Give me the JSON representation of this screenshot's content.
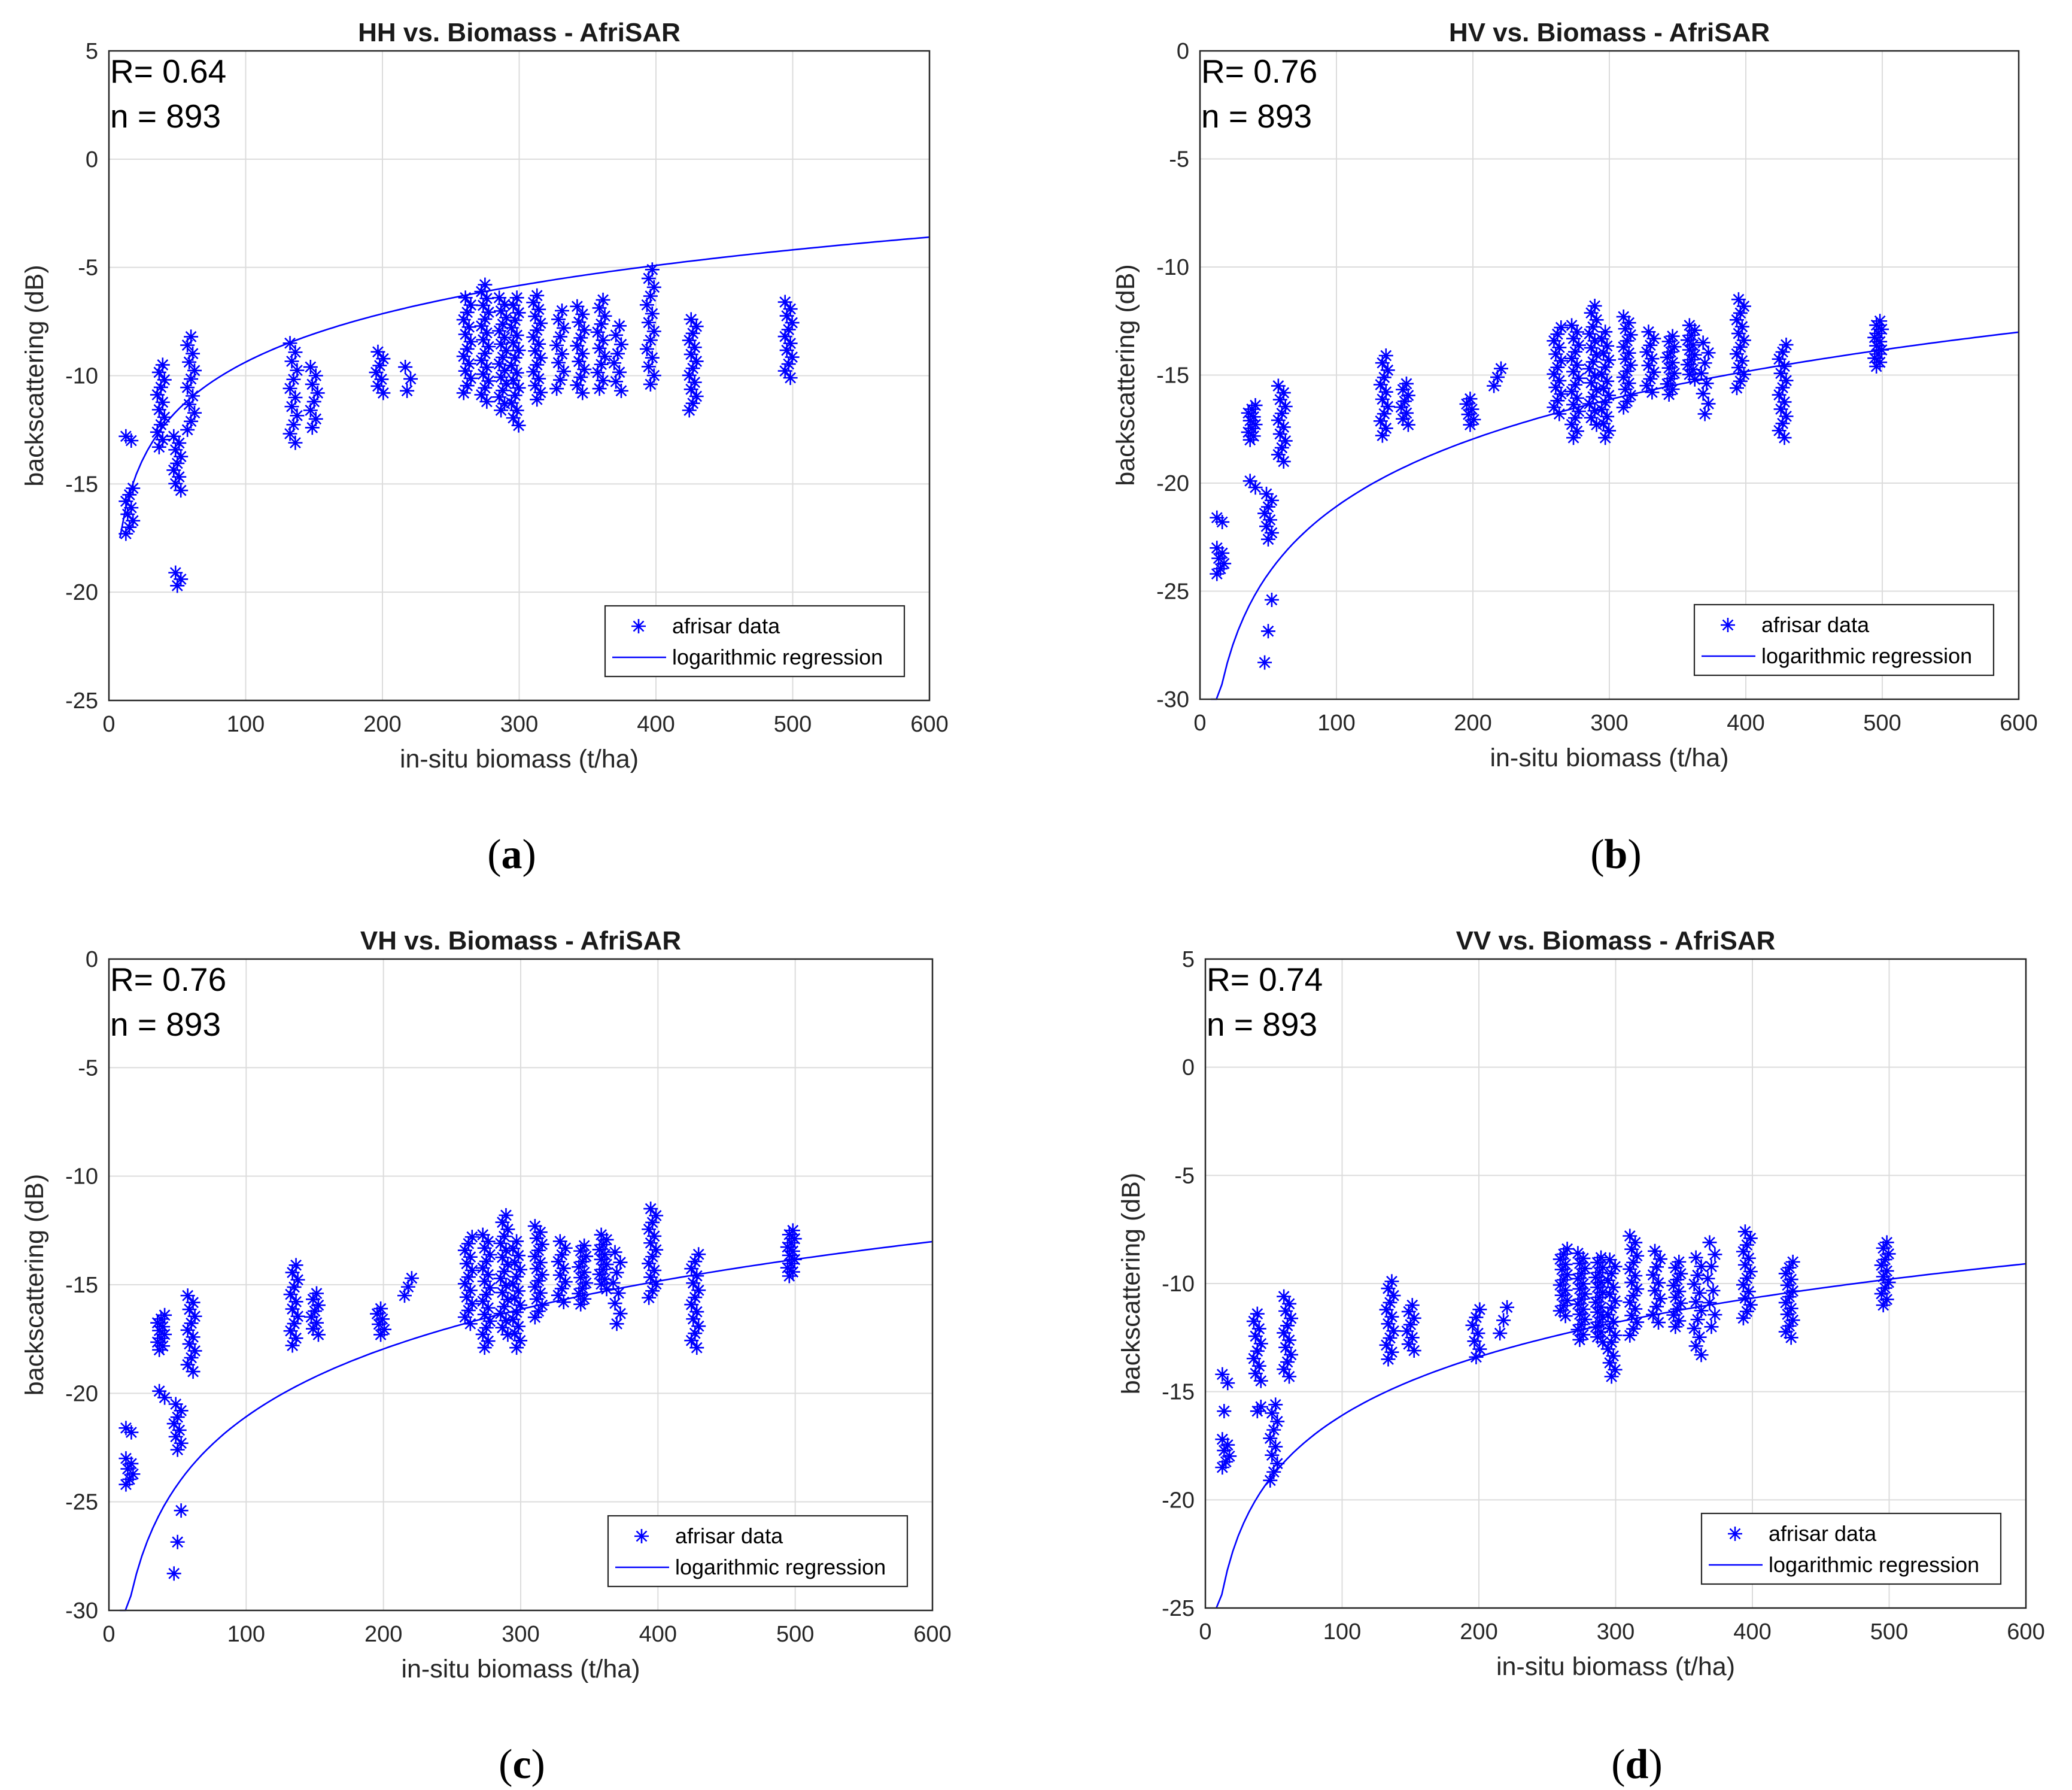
{
  "chart_data": [
    {
      "type": "scatter",
      "panel": "(a)",
      "title": "HH vs. Biomass - AfriSAR",
      "xlabel": "in-situ biomass (t/ha)",
      "ylabel": "backscattering (dB)",
      "xlim": [
        0,
        600
      ],
      "ylim": [
        -25,
        5
      ],
      "xticks": [
        0,
        100,
        200,
        300,
        400,
        500,
        600
      ],
      "yticks": [
        5,
        0,
        -5,
        -10,
        -15,
        -20,
        -25
      ],
      "annotations": [
        "R= 0.64",
        "n = 893"
      ],
      "legend": {
        "position": "bottom-right",
        "entries": [
          "afrisar data",
          "logarithmic regression"
        ]
      },
      "regression": {
        "a": 3.22,
        "b": -24.2
      },
      "clusters": [
        {
          "x": 15,
          "ymin": -17.3,
          "ymax": -15.2,
          "n": 8
        },
        {
          "x": 15,
          "ymin": -13.0,
          "ymax": -12.8,
          "n": 2
        },
        {
          "x": 38,
          "ymin": -13.3,
          "ymax": -9.5,
          "n": 12
        },
        {
          "x": 50,
          "ymin": -15.3,
          "ymax": -12.8,
          "n": 9
        },
        {
          "x": 50,
          "ymin": -19.7,
          "ymax": -19.1,
          "n": 3
        },
        {
          "x": 60,
          "ymin": -12.5,
          "ymax": -8.2,
          "n": 12
        },
        {
          "x": 135,
          "ymin": -13.1,
          "ymax": -8.5,
          "n": 12
        },
        {
          "x": 150,
          "ymin": -12.4,
          "ymax": -9.6,
          "n": 8
        },
        {
          "x": 198,
          "ymin": -10.8,
          "ymax": -8.9,
          "n": 7
        },
        {
          "x": 218,
          "ymin": -10.7,
          "ymax": -9.6,
          "n": 3
        },
        {
          "x": 262,
          "ymin": -10.8,
          "ymax": -6.4,
          "n": 14
        },
        {
          "x": 275,
          "ymin": -11.2,
          "ymax": -5.8,
          "n": 18
        },
        {
          "x": 288,
          "ymin": -11.6,
          "ymax": -6.4,
          "n": 18
        },
        {
          "x": 297,
          "ymin": -12.3,
          "ymax": -6.4,
          "n": 18
        },
        {
          "x": 313,
          "ymin": -11.1,
          "ymax": -6.3,
          "n": 16
        },
        {
          "x": 330,
          "ymin": -10.6,
          "ymax": -7.0,
          "n": 10
        },
        {
          "x": 345,
          "ymin": -10.8,
          "ymax": -6.8,
          "n": 12
        },
        {
          "x": 360,
          "ymin": -10.6,
          "ymax": -6.5,
          "n": 12
        },
        {
          "x": 372,
          "ymin": -10.7,
          "ymax": -7.7,
          "n": 8
        },
        {
          "x": 396,
          "ymin": -10.4,
          "ymax": -5.1,
          "n": 14
        },
        {
          "x": 427,
          "ymin": -11.6,
          "ymax": -7.4,
          "n": 14
        },
        {
          "x": 497,
          "ymin": -10.1,
          "ymax": -6.6,
          "n": 12
        }
      ]
    },
    {
      "type": "scatter",
      "panel": "(b)",
      "title": "HV vs. Biomass - AfriSAR",
      "xlabel": "in-situ biomass (t/ha)",
      "ylabel": "backscattering (dB)",
      "xlim": [
        0,
        600
      ],
      "ylim": [
        -30,
        0
      ],
      "xticks": [
        0,
        100,
        200,
        300,
        400,
        500,
        600
      ],
      "yticks": [
        0,
        -5,
        -10,
        -15,
        -20,
        -25,
        -30
      ],
      "annotations": [
        "R= 0.76",
        "n = 893"
      ],
      "legend": {
        "position": "bottom-right",
        "entries": [
          "afrisar data",
          "logarithmic regression"
        ]
      },
      "regression": {
        "a": 4.5,
        "b": -41.8
      },
      "clusters": [
        {
          "x": 15,
          "ymin": -24.2,
          "ymax": -23.0,
          "n": 6
        },
        {
          "x": 15,
          "ymin": -21.8,
          "ymax": -21.6,
          "n": 2
        },
        {
          "x": 38,
          "ymin": -18.0,
          "ymax": -16.4,
          "n": 10
        },
        {
          "x": 38,
          "ymin": -20.2,
          "ymax": -19.9,
          "n": 2
        },
        {
          "x": 50,
          "ymin": -22.6,
          "ymax": -20.5,
          "n": 8
        },
        {
          "x": 50,
          "ymin": -28.3,
          "ymax": -25.4,
          "n": 3
        },
        {
          "x": 60,
          "ymin": -19.0,
          "ymax": -15.5,
          "n": 12
        },
        {
          "x": 135,
          "ymin": -17.8,
          "ymax": -14.1,
          "n": 12
        },
        {
          "x": 150,
          "ymin": -17.3,
          "ymax": -15.4,
          "n": 8
        },
        {
          "x": 198,
          "ymin": -17.3,
          "ymax": -16.1,
          "n": 6
        },
        {
          "x": 218,
          "ymin": -15.5,
          "ymax": -14.7,
          "n": 3
        },
        {
          "x": 262,
          "ymin": -16.8,
          "ymax": -12.8,
          "n": 14
        },
        {
          "x": 275,
          "ymin": -17.9,
          "ymax": -12.7,
          "n": 18
        },
        {
          "x": 288,
          "ymin": -17.3,
          "ymax": -11.8,
          "n": 18
        },
        {
          "x": 297,
          "ymin": -17.9,
          "ymax": -13.0,
          "n": 16
        },
        {
          "x": 313,
          "ymin": -16.5,
          "ymax": -12.3,
          "n": 16
        },
        {
          "x": 330,
          "ymin": -15.8,
          "ymax": -13.0,
          "n": 10
        },
        {
          "x": 345,
          "ymin": -15.9,
          "ymax": -13.2,
          "n": 12
        },
        {
          "x": 360,
          "ymin": -15.2,
          "ymax": -12.7,
          "n": 12
        },
        {
          "x": 370,
          "ymin": -16.8,
          "ymax": -13.5,
          "n": 8
        },
        {
          "x": 396,
          "ymin": -15.6,
          "ymax": -11.5,
          "n": 14
        },
        {
          "x": 427,
          "ymin": -17.9,
          "ymax": -13.6,
          "n": 14
        },
        {
          "x": 497,
          "ymin": -14.6,
          "ymax": -12.5,
          "n": 12
        }
      ]
    },
    {
      "type": "scatter",
      "panel": "(c)",
      "title": "VH vs. Biomass - AfriSAR",
      "xlabel": "in-situ biomass (t/ha)",
      "ylabel": "backscattering (dB)",
      "xlim": [
        0,
        600
      ],
      "ylim": [
        -30,
        0
      ],
      "xticks": [
        0,
        100,
        200,
        300,
        400,
        500,
        600
      ],
      "yticks": [
        0,
        -5,
        -10,
        -15,
        -20,
        -25,
        -30
      ],
      "annotations": [
        "R= 0.76",
        "n = 893"
      ],
      "legend": {
        "position": "bottom-right",
        "entries": [
          "afrisar data",
          "logarithmic regression"
        ]
      },
      "regression": {
        "a": 4.5,
        "b": -41.8
      },
      "clusters": [
        {
          "x": 15,
          "ymin": -24.2,
          "ymax": -23.0,
          "n": 6
        },
        {
          "x": 15,
          "ymin": -21.8,
          "ymax": -21.6,
          "n": 2
        },
        {
          "x": 38,
          "ymin": -18.0,
          "ymax": -16.4,
          "n": 10
        },
        {
          "x": 38,
          "ymin": -20.2,
          "ymax": -19.9,
          "n": 2
        },
        {
          "x": 50,
          "ymin": -22.6,
          "ymax": -20.5,
          "n": 8
        },
        {
          "x": 50,
          "ymin": -28.3,
          "ymax": -25.4,
          "n": 3
        },
        {
          "x": 60,
          "ymin": -19.0,
          "ymax": -15.5,
          "n": 12
        },
        {
          "x": 135,
          "ymin": -17.8,
          "ymax": -14.1,
          "n": 12
        },
        {
          "x": 150,
          "ymin": -17.3,
          "ymax": -15.4,
          "n": 8
        },
        {
          "x": 198,
          "ymin": -17.3,
          "ymax": -16.1,
          "n": 6
        },
        {
          "x": 218,
          "ymin": -15.5,
          "ymax": -14.7,
          "n": 3
        },
        {
          "x": 262,
          "ymin": -16.8,
          "ymax": -12.8,
          "n": 14
        },
        {
          "x": 275,
          "ymin": -17.9,
          "ymax": -12.7,
          "n": 18
        },
        {
          "x": 288,
          "ymin": -17.3,
          "ymax": -11.8,
          "n": 18
        },
        {
          "x": 297,
          "ymin": -17.9,
          "ymax": -13.0,
          "n": 16
        },
        {
          "x": 313,
          "ymin": -16.5,
          "ymax": -12.3,
          "n": 16
        },
        {
          "x": 330,
          "ymin": -15.8,
          "ymax": -13.0,
          "n": 10
        },
        {
          "x": 345,
          "ymin": -15.9,
          "ymax": -13.2,
          "n": 12
        },
        {
          "x": 360,
          "ymin": -15.2,
          "ymax": -12.7,
          "n": 12
        },
        {
          "x": 370,
          "ymin": -16.8,
          "ymax": -13.5,
          "n": 8
        },
        {
          "x": 396,
          "ymin": -15.6,
          "ymax": -11.5,
          "n": 14
        },
        {
          "x": 427,
          "ymin": -17.9,
          "ymax": -13.6,
          "n": 14
        },
        {
          "x": 497,
          "ymin": -14.6,
          "ymax": -12.5,
          "n": 12
        }
      ]
    },
    {
      "type": "scatter",
      "panel": "(d)",
      "title": "VV vs. Biomass - AfriSAR",
      "xlabel": "in-situ biomass (t/ha)",
      "ylabel": "backscattering (dB)",
      "xlim": [
        0,
        600
      ],
      "ylim": [
        -25,
        5
      ],
      "xticks": [
        0,
        100,
        200,
        300,
        400,
        500,
        600
      ],
      "yticks": [
        5,
        0,
        -5,
        -10,
        -15,
        -20,
        -25
      ],
      "annotations": [
        "R= 0.74",
        "n = 893"
      ],
      "legend": {
        "position": "bottom-right",
        "entries": [
          "afrisar data",
          "logarithmic regression"
        ]
      },
      "regression": {
        "a": 3.91,
        "b": -34.1
      },
      "clusters": [
        {
          "x": 15,
          "ymin": -18.5,
          "ymax": -17.2,
          "n": 6
        },
        {
          "x": 15,
          "ymin": -14.6,
          "ymax": -14.2,
          "n": 2
        },
        {
          "x": 15,
          "ymin": -15.9,
          "ymax": -15.9,
          "n": 1
        },
        {
          "x": 38,
          "ymin": -14.5,
          "ymax": -11.4,
          "n": 10
        },
        {
          "x": 38,
          "ymin": -15.9,
          "ymax": -15.7,
          "n": 2
        },
        {
          "x": 50,
          "ymin": -19.1,
          "ymax": -15.6,
          "n": 10
        },
        {
          "x": 60,
          "ymin": -14.3,
          "ymax": -10.6,
          "n": 12
        },
        {
          "x": 135,
          "ymin": -13.5,
          "ymax": -9.9,
          "n": 12
        },
        {
          "x": 150,
          "ymin": -13.1,
          "ymax": -11.0,
          "n": 8
        },
        {
          "x": 198,
          "ymin": -13.4,
          "ymax": -11.2,
          "n": 7
        },
        {
          "x": 218,
          "ymin": -12.3,
          "ymax": -11.1,
          "n": 3
        },
        {
          "x": 262,
          "ymin": -11.5,
          "ymax": -8.4,
          "n": 14
        },
        {
          "x": 275,
          "ymin": -12.6,
          "ymax": -8.6,
          "n": 18
        },
        {
          "x": 288,
          "ymin": -12.7,
          "ymax": -8.8,
          "n": 18
        },
        {
          "x": 297,
          "ymin": -14.3,
          "ymax": -8.9,
          "n": 18
        },
        {
          "x": 313,
          "ymin": -12.4,
          "ymax": -7.8,
          "n": 16
        },
        {
          "x": 330,
          "ymin": -11.8,
          "ymax": -8.5,
          "n": 10
        },
        {
          "x": 345,
          "ymin": -12.0,
          "ymax": -9.0,
          "n": 12
        },
        {
          "x": 360,
          "ymin": -13.3,
          "ymax": -8.8,
          "n": 12
        },
        {
          "x": 370,
          "ymin": -12.0,
          "ymax": -8.1,
          "n": 8
        },
        {
          "x": 396,
          "ymin": -11.6,
          "ymax": -7.6,
          "n": 14
        },
        {
          "x": 427,
          "ymin": -12.5,
          "ymax": -9.0,
          "n": 14
        },
        {
          "x": 497,
          "ymin": -11.0,
          "ymax": -8.1,
          "n": 12
        }
      ]
    }
  ],
  "colors": {
    "marker": "#0000ff",
    "line": "#0000ff",
    "grid": "#dcdcdc",
    "axis": "#262626"
  }
}
